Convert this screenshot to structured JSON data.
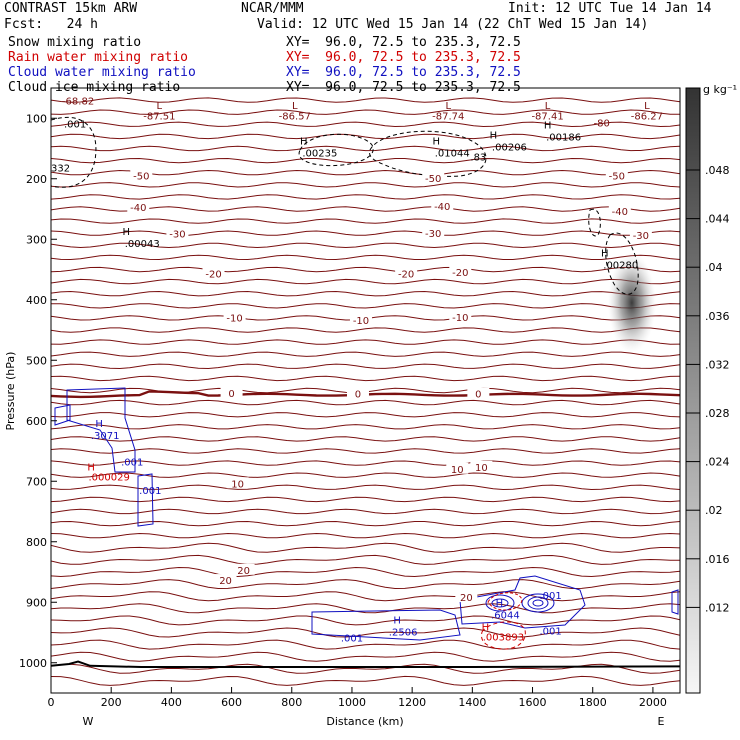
{
  "header": {
    "model": "CONTRAST 15km ARW",
    "org": "NCAR/MMM",
    "init": "Init: 12 UTC Tue 14 Jan 14",
    "fcst": "Fcst:   24 h",
    "valid": "Valid: 12 UTC Wed 15 Jan 14 (22 ChT Wed 15 Jan 14)",
    "fields": [
      {
        "name": "Snow mixing ratio",
        "xy": "XY=  96.0, 72.5 to 235.3, 72.5",
        "color": "#000000"
      },
      {
        "name": "Rain water mixing ratio",
        "xy": "XY=  96.0, 72.5 to 235.3, 72.5",
        "color": "#d00000"
      },
      {
        "name": "Cloud water mixing ratio",
        "xy": "XY=  96.0, 72.5 to 235.3, 72.5",
        "color": "#1010c0"
      },
      {
        "name": "Cloud ice mixing ratio",
        "xy": "XY=  96.0, 72.5 to 235.3, 72.5",
        "color": "#000000"
      }
    ]
  },
  "chart_data": {
    "type": "cross-section contour",
    "xlabel": "Distance (km)",
    "ylabel": "Pressure (hPa)",
    "xlim": [
      0,
      2090
    ],
    "ylim": [
      1050,
      50
    ],
    "x_ticks": [
      0,
      200,
      400,
      600,
      800,
      1000,
      1200,
      1400,
      1600,
      1800,
      2000
    ],
    "y_ticks": [
      100,
      200,
      300,
      400,
      500,
      600,
      700,
      800,
      900,
      1000
    ],
    "endpoints": {
      "left": "W",
      "right": "E"
    },
    "colorbar": {
      "unit": "g kg⁻¹",
      "ticks": [
        ".048",
        ".044",
        ".04",
        ".036",
        ".032",
        ".028",
        ".024",
        ".02",
        ".016",
        ".012"
      ],
      "colors": [
        "#f6f6f6",
        "#333333"
      ]
    },
    "temperature_labels": [
      {
        "x": 1270,
        "p": 200,
        "text": "-50"
      },
      {
        "x": 300,
        "p": 196,
        "text": "-50"
      },
      {
        "x": 1880,
        "p": 196,
        "text": "-50"
      },
      {
        "x": 290,
        "p": 248,
        "text": "-40"
      },
      {
        "x": 1300,
        "p": 247,
        "text": "-40"
      },
      {
        "x": 1890,
        "p": 255,
        "text": "-40"
      },
      {
        "x": 420,
        "p": 292,
        "text": "-30"
      },
      {
        "x": 1270,
        "p": 291,
        "text": "-30"
      },
      {
        "x": 1960,
        "p": 295,
        "text": "-30"
      },
      {
        "x": 540,
        "p": 358,
        "text": "-20"
      },
      {
        "x": 1180,
        "p": 358,
        "text": "-20"
      },
      {
        "x": 1360,
        "p": 356,
        "text": "-20"
      },
      {
        "x": 610,
        "p": 431,
        "text": "-10"
      },
      {
        "x": 1030,
        "p": 435,
        "text": "-10"
      },
      {
        "x": 1360,
        "p": 430,
        "text": "-10"
      },
      {
        "x": 600,
        "p": 556,
        "text": "0"
      },
      {
        "x": 1020,
        "p": 557,
        "text": "0"
      },
      {
        "x": 1420,
        "p": 557,
        "text": "0"
      },
      {
        "x": 620,
        "p": 705,
        "text": "10"
      },
      {
        "x": 1350,
        "p": 681,
        "text": "10"
      },
      {
        "x": 1430,
        "p": 678,
        "text": "10"
      },
      {
        "x": 580,
        "p": 865,
        "text": "20"
      },
      {
        "x": 640,
        "p": 848,
        "text": "20"
      },
      {
        "x": 1380,
        "p": 893,
        "text": "20"
      }
    ],
    "top_L_markers": [
      {
        "x": 360,
        "val": "-87.51"
      },
      {
        "x": 810,
        "val": "-86.57"
      },
      {
        "x": 1320,
        "val": "-87.74"
      },
      {
        "x": 1650,
        "val": "-87.41"
      },
      {
        "x": 1980,
        "val": "-86.27"
      }
    ],
    "top_extra_labels": [
      {
        "x": 90,
        "p": 77,
        "text": "-68.82"
      },
      {
        "x": 1830,
        "p": 114,
        "text": "-80"
      }
    ],
    "snow_labels": [
      {
        "x": 80,
        "p": 115,
        "text": ".001"
      },
      {
        "x": 0,
        "p": 188,
        "text": "332"
      },
      {
        "x": 1420,
        "p": 170,
        "text": ".83"
      }
    ],
    "ice_max_labels": [
      {
        "x": 270,
        "p": 313,
        "val": ".00043"
      },
      {
        "x": 860,
        "p": 163,
        "val": ".00235"
      },
      {
        "x": 1300,
        "p": 163,
        "val": ".01044"
      },
      {
        "x": 1490,
        "p": 153,
        "val": ".00206"
      },
      {
        "x": 1670,
        "p": 137,
        "val": ".00186"
      },
      {
        "x": 1860,
        "p": 348,
        "val": ".00280"
      }
    ],
    "cloud_water_labels": [
      {
        "x": 180,
        "p": 630,
        "text": ".3071",
        "h": true
      },
      {
        "x": 270,
        "p": 674,
        "text": ".001",
        "h": false
      },
      {
        "x": 330,
        "p": 721,
        "text": ".001",
        "h": false
      },
      {
        "x": 1000,
        "p": 965,
        "text": ".001",
        "h": false
      },
      {
        "x": 1170,
        "p": 955,
        "text": ".2506",
        "h": true
      },
      {
        "x": 1510,
        "p": 927,
        "text": ".6044",
        "h": true
      },
      {
        "x": 1660,
        "p": 895,
        "text": ".001",
        "h": false
      },
      {
        "x": 1660,
        "p": 953,
        "text": ".001",
        "h": false
      }
    ],
    "rain_labels": [
      {
        "x": 180,
        "p": 699,
        "val": ".000029"
      },
      {
        "x": 1490,
        "p": 963,
        "val": ".003893"
      }
    ]
  }
}
